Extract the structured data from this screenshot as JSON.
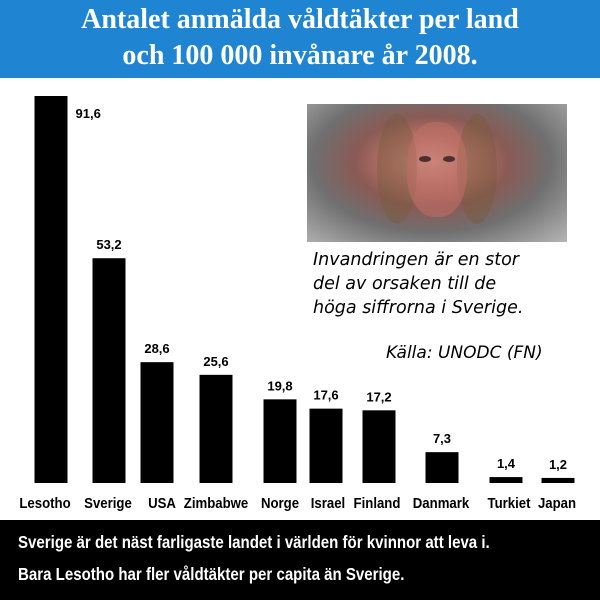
{
  "header": {
    "title_line1": "Antalet anmälda våldtäkter per land",
    "title_line2": "och 100 000 invånare år 2008."
  },
  "photo": {
    "caption_lines": [
      "Invandringen är en stor",
      "del av orsaken till de",
      "höga siffrorna i Sverige."
    ],
    "source": "Källa: UNODC (FN)"
  },
  "footer": {
    "line1": "Sverige är det näst farligaste landet i världen för kvinnor att leva i.",
    "line2": "Bara Lesotho har fler våldtäkter per capita än Sverige."
  },
  "colors": {
    "header_bg": "#1f85d2",
    "bar": "#000000",
    "footer_bg": "#000000",
    "text_on_dark": "#ffffff"
  },
  "chart_data": {
    "type": "bar",
    "title": "Antalet anmälda våldtäkter per land och 100 000 invånare år 2008.",
    "categories": [
      "Lesotho",
      "Sverige",
      "USA",
      "Zimbabwe",
      "Norge",
      "Israel",
      "Finland",
      "Danmark",
      "Turkiet",
      "Japan"
    ],
    "values": [
      91.6,
      53.2,
      28.6,
      25.6,
      19.8,
      17.6,
      17.2,
      7.3,
      1.4,
      1.2
    ],
    "value_labels": [
      "91,6",
      "53,2",
      "28,6",
      "25,6",
      "19,8",
      "17,6",
      "17,2",
      "7,3",
      "1,4",
      "1,2"
    ],
    "xlabel": "",
    "ylabel": "",
    "ylim": [
      0,
      91.6
    ],
    "grid": false,
    "legend": "none"
  }
}
